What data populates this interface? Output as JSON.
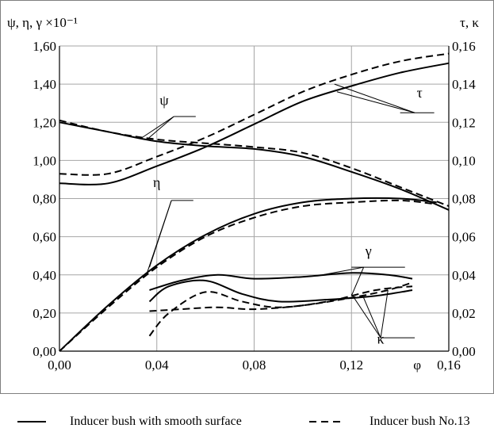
{
  "chart_data": {
    "type": "line",
    "left_axis_label": "ψ, η, γ ×10⁻¹",
    "right_axis_label": "τ, κ",
    "xlabel": "φ",
    "x_ticks": [
      "0,00",
      "0,04",
      "0,08",
      "0,12",
      "0,16"
    ],
    "left_ticks": [
      "0,00",
      "0,20",
      "0,40",
      "0,60",
      "0,80",
      "1,00",
      "1,20",
      "1,40",
      "1,60"
    ],
    "right_ticks": [
      "0,00",
      "0,02",
      "0,04",
      "0,06",
      "0,08",
      "0,10",
      "0,12",
      "0,14",
      "0,16"
    ],
    "xlim": [
      0,
      0.16
    ],
    "ylim_left": [
      0,
      1.6
    ],
    "ylim_right": [
      0,
      0.16
    ],
    "grid": true,
    "series": [
      {
        "curve": "ψ",
        "axis": "left",
        "style": "solid",
        "x": [
          0,
          0.02,
          0.04,
          0.06,
          0.08,
          0.1,
          0.12,
          0.14,
          0.16
        ],
        "y": [
          1.2,
          1.15,
          1.1,
          1.075,
          1.06,
          1.02,
          0.94,
          0.85,
          0.74
        ]
      },
      {
        "curve": "ψ",
        "axis": "left",
        "style": "dashed",
        "x": [
          0,
          0.02,
          0.04,
          0.06,
          0.08,
          0.1,
          0.12,
          0.14,
          0.16
        ],
        "y": [
          1.21,
          1.15,
          1.11,
          1.09,
          1.07,
          1.04,
          0.96,
          0.86,
          0.76
        ]
      },
      {
        "curve": "τ",
        "axis": "right",
        "style": "solid",
        "x": [
          0,
          0.02,
          0.04,
          0.06,
          0.08,
          0.1,
          0.12,
          0.14,
          0.16
        ],
        "y": [
          0.088,
          0.088,
          0.097,
          0.107,
          0.119,
          0.131,
          0.139,
          0.146,
          0.151
        ]
      },
      {
        "curve": "τ",
        "axis": "right",
        "style": "dashed",
        "x": [
          0,
          0.02,
          0.04,
          0.06,
          0.08,
          0.1,
          0.12,
          0.14,
          0.16
        ],
        "y": [
          0.093,
          0.093,
          0.102,
          0.112,
          0.124,
          0.136,
          0.145,
          0.152,
          0.156
        ]
      },
      {
        "curve": "η",
        "axis": "left",
        "style": "solid",
        "x": [
          0,
          0.02,
          0.04,
          0.06,
          0.08,
          0.1,
          0.12,
          0.14,
          0.155
        ],
        "y": [
          0.0,
          0.24,
          0.45,
          0.61,
          0.72,
          0.78,
          0.8,
          0.8,
          0.78
        ]
      },
      {
        "curve": "η",
        "axis": "left",
        "style": "dashed",
        "x": [
          0,
          0.02,
          0.04,
          0.06,
          0.08,
          0.1,
          0.12,
          0.14,
          0.155
        ],
        "y": [
          0.0,
          0.23,
          0.44,
          0.6,
          0.7,
          0.76,
          0.78,
          0.79,
          0.77
        ]
      },
      {
        "curve": "γ",
        "axis": "left",
        "style": "solid",
        "x": [
          0.037,
          0.05,
          0.065,
          0.08,
          0.1,
          0.12,
          0.135,
          0.145
        ],
        "y": [
          0.32,
          0.37,
          0.4,
          0.38,
          0.39,
          0.41,
          0.4,
          0.38
        ]
      },
      {
        "curve": "γ",
        "axis": "left",
        "style": "dashed",
        "x": [
          0.037,
          0.05,
          0.065,
          0.08,
          0.1,
          0.12,
          0.135,
          0.145
        ],
        "y": [
          0.21,
          0.22,
          0.23,
          0.22,
          0.24,
          0.28,
          0.32,
          0.36
        ]
      },
      {
        "curve": "κ",
        "axis": "right",
        "style": "solid",
        "x": [
          0.037,
          0.045,
          0.06,
          0.075,
          0.09,
          0.11,
          0.13,
          0.145
        ],
        "y": [
          0.026,
          0.034,
          0.037,
          0.03,
          0.026,
          0.027,
          0.029,
          0.032
        ]
      },
      {
        "curve": "κ",
        "axis": "right",
        "style": "dashed",
        "x": [
          0.037,
          0.045,
          0.06,
          0.075,
          0.09,
          0.11,
          0.13,
          0.145
        ],
        "y": [
          0.008,
          0.02,
          0.031,
          0.026,
          0.023,
          0.026,
          0.032,
          0.034
        ]
      }
    ],
    "curve_labels": [
      {
        "text": "ψ",
        "x": 0.043,
        "y": 1.29
      },
      {
        "text": "τ",
        "x": 0.148,
        "y": 1.33
      },
      {
        "text": "η",
        "x": 0.04,
        "y": 0.86
      },
      {
        "text": "γ",
        "x": 0.127,
        "y": 0.5
      },
      {
        "text": "κ",
        "x": 0.132,
        "y": 0.04
      }
    ],
    "legend": [
      {
        "label": "Inducer bush with smooth surface",
        "style": "solid"
      },
      {
        "label": "Inducer bush No.13",
        "style": "dashed"
      }
    ]
  }
}
